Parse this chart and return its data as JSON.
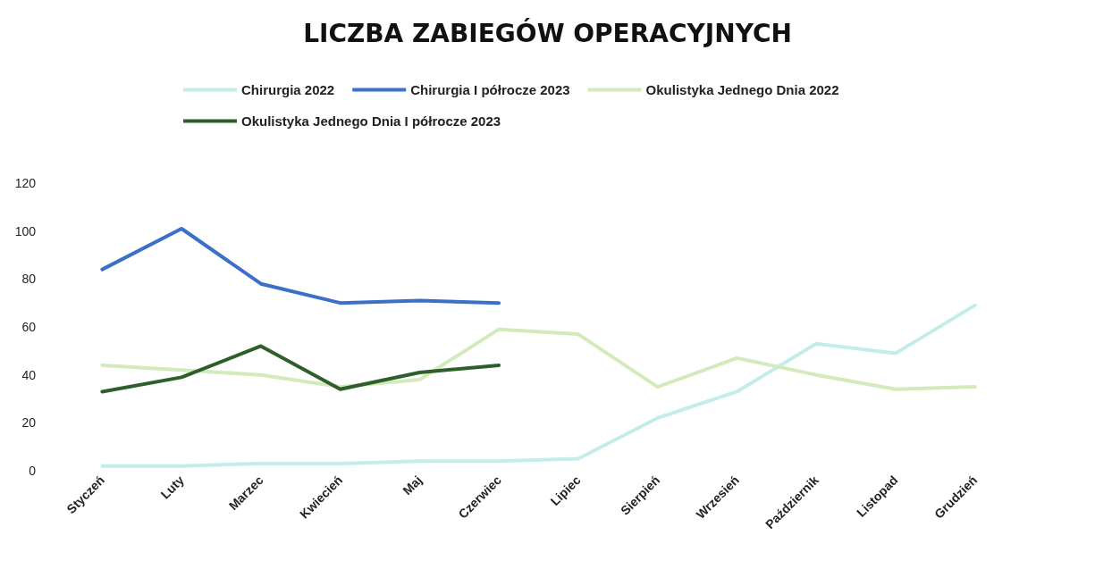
{
  "chart_data": {
    "type": "line",
    "title": "LICZBA ZABIEGÓW OPERACYJNYCH",
    "categories": [
      "Styczeń",
      "Luty",
      "Marzec",
      "Kwiecień",
      "Maj",
      "Czerwiec",
      "Lipiec",
      "Sierpień",
      "Wrzesień",
      "Październik",
      "Listopad",
      "Grudzień"
    ],
    "series": [
      {
        "name": "Chirurgia 2022",
        "color": "#c3ede8",
        "values": [
          2,
          2,
          3,
          3,
          4,
          4,
          5,
          22,
          33,
          53,
          49,
          69
        ]
      },
      {
        "name": "Chirurgia I półrocze 2023",
        "color": "#3a70c8",
        "values": [
          84,
          101,
          78,
          70,
          71,
          70,
          null,
          null,
          null,
          null,
          null,
          null
        ]
      },
      {
        "name": "Okulistyka Jednego Dnia 2022",
        "color": "#d2eabc",
        "values": [
          44,
          42,
          40,
          35,
          38,
          59,
          57,
          35,
          47,
          40,
          34,
          35
        ]
      },
      {
        "name": "Okulistyka Jednego Dnia I półrocze 2023",
        "color": "#2e5e2a",
        "values": [
          33,
          39,
          52,
          34,
          41,
          44,
          null,
          null,
          null,
          null,
          null,
          null
        ]
      }
    ],
    "ylim": [
      0,
      120
    ],
    "yticks": [
      0,
      20,
      40,
      60,
      80,
      100,
      120
    ],
    "grid": false,
    "legend": "top",
    "marker": "none",
    "line_style": "solid"
  }
}
